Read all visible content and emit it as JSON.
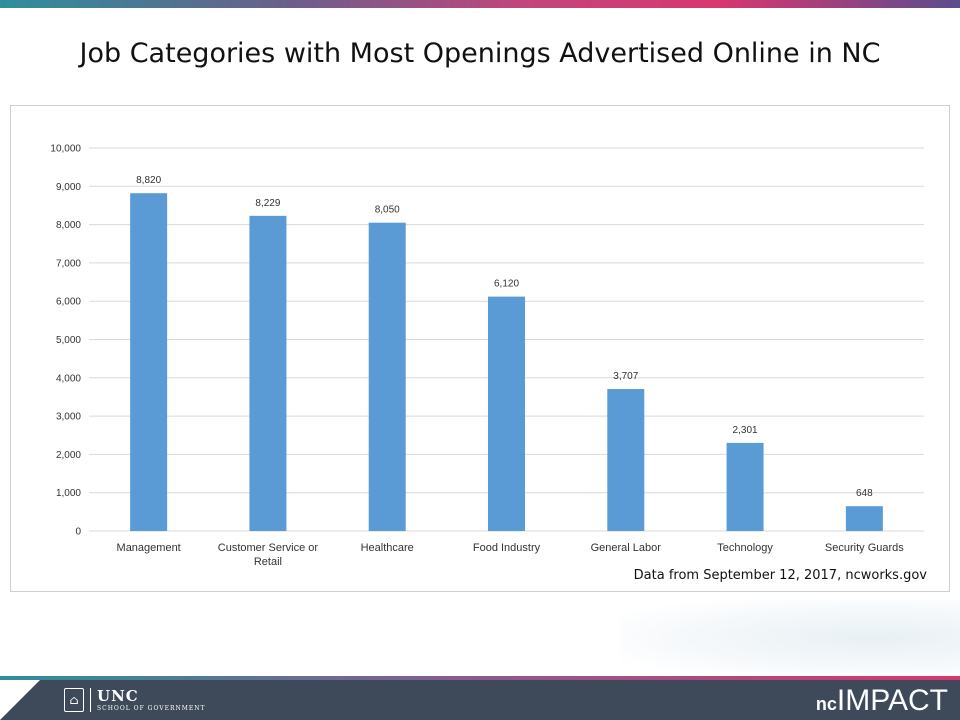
{
  "slide": {
    "title": "Job Categories with Most Openings Advertised Online in NC",
    "source_note": "Data from September 12, 2017,  ncworks.gov"
  },
  "footer": {
    "org_main": "UNC",
    "org_sub": "SCHOOL OF GOVERNMENT",
    "brand_prefix": "nc",
    "brand_main": "IMPACT"
  },
  "colors": {
    "bar": "#5b9bd5",
    "gridline": "#d9d9d9",
    "axis_text": "#333333",
    "footer_bg": "#3e4a59"
  },
  "chart_data": {
    "type": "bar",
    "categories": [
      "Management",
      "Customer Service or Retail",
      "Healthcare",
      "Food Industry",
      "General Labor",
      "Technology",
      "Security Guards"
    ],
    "category_label_lines": [
      [
        "Management"
      ],
      [
        "Customer Service or",
        "Retail"
      ],
      [
        "Healthcare"
      ],
      [
        "Food Industry"
      ],
      [
        "General Labor"
      ],
      [
        "Technology"
      ],
      [
        "Security Guards"
      ]
    ],
    "values": [
      8820,
      8229,
      8050,
      6120,
      3707,
      2301,
      648
    ],
    "data_labels": [
      "8,820",
      "8,229",
      "8,050",
      "6,120",
      "3,707",
      "2,301",
      "648"
    ],
    "ylim": [
      0,
      10000
    ],
    "yticks": [
      0,
      1000,
      2000,
      3000,
      4000,
      5000,
      6000,
      7000,
      8000,
      9000,
      10000
    ],
    "ytick_labels": [
      "0",
      "1,000",
      "2,000",
      "3,000",
      "4,000",
      "5,000",
      "6,000",
      "7,000",
      "8,000",
      "9,000",
      "10,000"
    ],
    "grid": true,
    "title": "",
    "xlabel": "",
    "ylabel": ""
  }
}
